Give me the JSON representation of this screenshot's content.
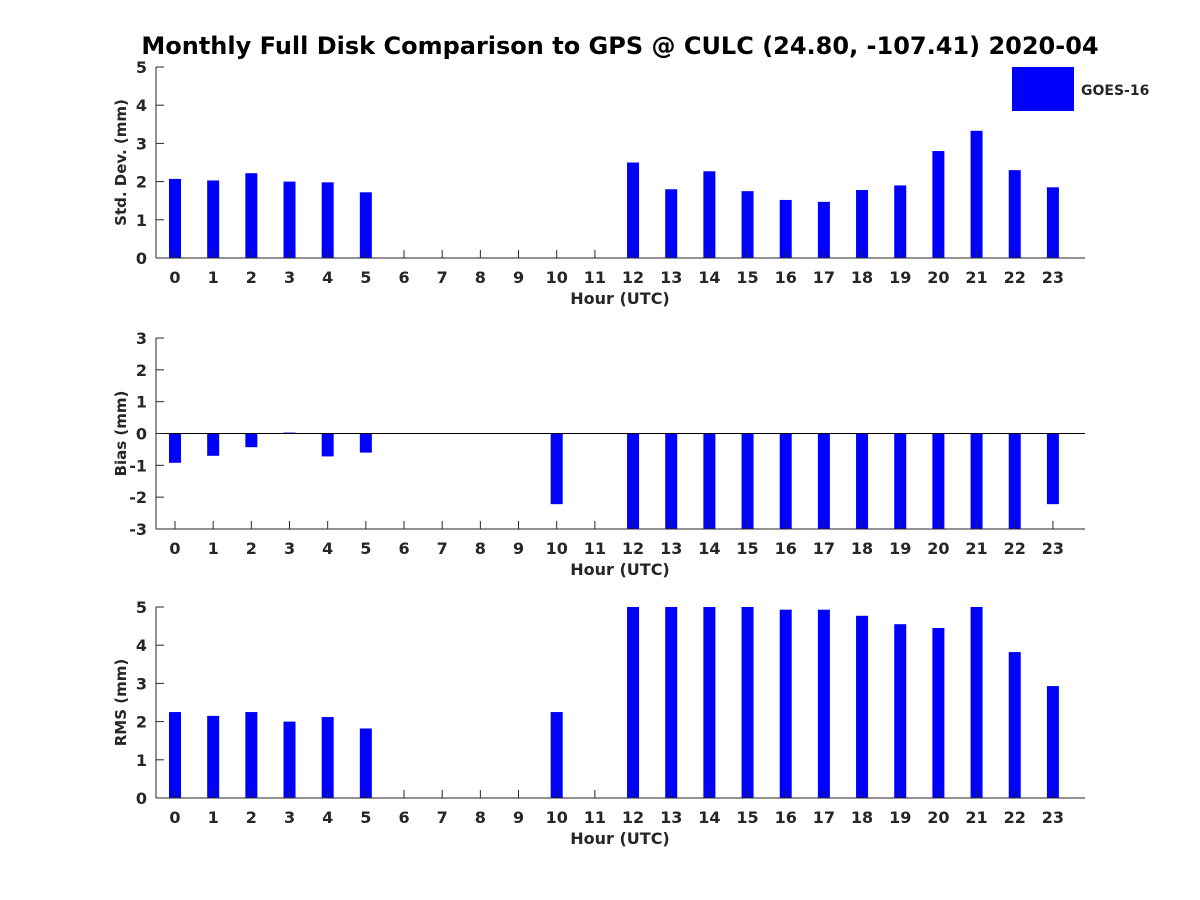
{
  "title": "Monthly Full Disk Comparison to GPS @ CULC (24.80, -107.41) 2020-04",
  "legend": {
    "label": "GOES-16",
    "color": "#0000ff",
    "position": "top-right"
  },
  "chart_data": [
    {
      "type": "bar",
      "ylabel": "Std. Dev. (mm)",
      "xlabel": "Hour (UTC)",
      "ylim": [
        0,
        5
      ],
      "yticks": [
        0,
        1,
        2,
        3,
        4,
        5
      ],
      "categories": [
        "0",
        "1",
        "2",
        "3",
        "4",
        "5",
        "6",
        "7",
        "8",
        "9",
        "10",
        "11",
        "12",
        "13",
        "14",
        "15",
        "16",
        "17",
        "18",
        "19",
        "20",
        "21",
        "22",
        "23"
      ],
      "series": [
        {
          "name": "GOES-16",
          "values": [
            2.07,
            2.03,
            2.22,
            2.0,
            1.98,
            1.72,
            null,
            null,
            null,
            null,
            null,
            null,
            2.5,
            1.8,
            2.27,
            1.75,
            1.52,
            1.47,
            1.78,
            1.9,
            2.8,
            3.33,
            2.3,
            1.85
          ]
        }
      ]
    },
    {
      "type": "bar",
      "ylabel": "Bias (mm)",
      "xlabel": "Hour (UTC)",
      "ylim": [
        -3,
        3
      ],
      "yticks": [
        -3,
        -2,
        -1,
        0,
        1,
        2,
        3
      ],
      "zero_line": true,
      "categories": [
        "0",
        "1",
        "2",
        "3",
        "4",
        "5",
        "6",
        "7",
        "8",
        "9",
        "10",
        "11",
        "12",
        "13",
        "14",
        "15",
        "16",
        "17",
        "18",
        "19",
        "20",
        "21",
        "22",
        "23"
      ],
      "series": [
        {
          "name": "GOES-16",
          "values": [
            -0.92,
            -0.7,
            -0.43,
            0.03,
            -0.72,
            -0.6,
            null,
            null,
            null,
            null,
            -2.22,
            null,
            -3,
            -3,
            -3,
            -3,
            -3,
            -3,
            -3,
            -3,
            -3,
            -3,
            -3,
            -2.22
          ]
        }
      ]
    },
    {
      "type": "bar",
      "ylabel": "RMS (mm)",
      "xlabel": "Hour (UTC)",
      "ylim": [
        0,
        5
      ],
      "yticks": [
        0,
        1,
        2,
        3,
        4,
        5
      ],
      "categories": [
        "0",
        "1",
        "2",
        "3",
        "4",
        "5",
        "6",
        "7",
        "8",
        "9",
        "10",
        "11",
        "12",
        "13",
        "14",
        "15",
        "16",
        "17",
        "18",
        "19",
        "20",
        "21",
        "22",
        "23"
      ],
      "series": [
        {
          "name": "GOES-16",
          "values": [
            2.25,
            2.15,
            2.25,
            2.0,
            2.12,
            1.82,
            null,
            null,
            null,
            null,
            2.25,
            null,
            5,
            5,
            5,
            5,
            4.93,
            4.93,
            4.77,
            4.55,
            4.45,
            5,
            3.82,
            2.93
          ]
        }
      ]
    }
  ]
}
